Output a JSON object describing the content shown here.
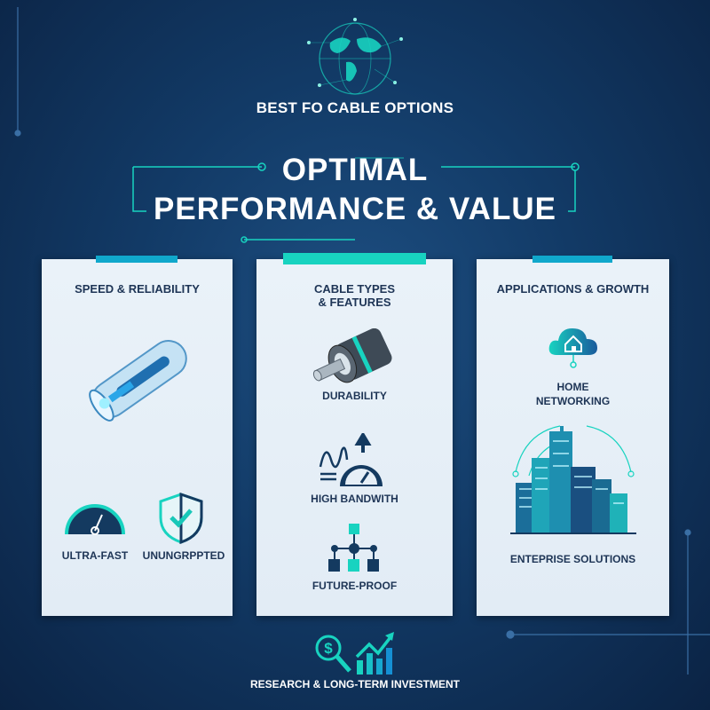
{
  "header": {
    "subtitle": "BEST FO CABLE OPTIONS",
    "title_line1": "OPTIMAL",
    "title_line2": "PERFORMANCE & VALUE"
  },
  "colors": {
    "background": "#123a66",
    "accent_teal": "#18d3c0",
    "accent_blue": "#10a8cc",
    "panel": "#e6eff7",
    "text_dark": "#1e3556"
  },
  "panels": [
    {
      "title": "SPEED & RELIABILITY",
      "items": [
        {
          "label": "ULTRA-FAST",
          "icon": "speedometer-icon"
        },
        {
          "label": "UNUNGRPPTED",
          "icon": "shield-check-icon"
        }
      ],
      "image": "fiber-tube-icon"
    },
    {
      "title_line1": "CABLE TYPES",
      "title_line2": "& FEATURES",
      "items": [
        {
          "label": "DURABILITY",
          "icon": "cable-cross-section-icon"
        },
        {
          "label": "HIGH BANDWITH",
          "icon": "bandwidth-gauge-icon"
        },
        {
          "label": "FUTURE-PROOF",
          "icon": "network-hierarchy-icon"
        }
      ]
    },
    {
      "title": "APPLICATIONS & GROWTH",
      "items": [
        {
          "label_line1": "HOME",
          "label_line2": "NETWORKING",
          "icon": "cloud-home-icon"
        },
        {
          "label": "ENTEPRISE SOLUTIONS",
          "icon": "city-buildings-icon"
        }
      ]
    }
  ],
  "footer": {
    "label": "RESEARCH & LONG-TERM INVESTMENT",
    "icons": [
      "dollar-search-icon",
      "growth-chart-icon"
    ]
  }
}
